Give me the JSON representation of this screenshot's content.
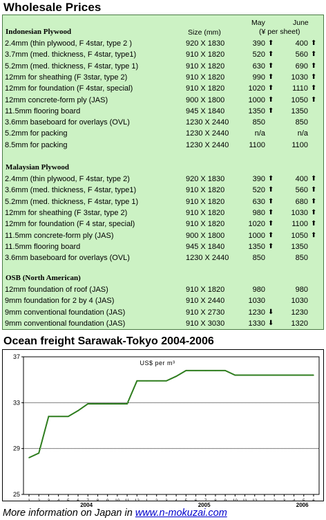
{
  "title": "Wholesale Prices",
  "table": {
    "col_size": "Size (mm)",
    "col_may": "May",
    "col_june": "June",
    "col_unit": "(¥ per sheet)",
    "sections": [
      {
        "name": "Indonesian Plywood",
        "rows": [
          {
            "desc": "2.4mm  (thin plywood, F 4star, type 2 )",
            "size": "920 X 1830",
            "may": "390",
            "may_arrow": "up",
            "june": "400",
            "june_arrow": "up"
          },
          {
            "desc": "3.7mm  (med. thickness,  F 4star, type1)",
            "size": "910 X 1820",
            "may": "520",
            "may_arrow": "up",
            "june": "560",
            "june_arrow": "up"
          },
          {
            "desc": "5.2mm  (med. thickness, F 4star, type 1)",
            "size": "910 X 1820",
            "may": "630",
            "may_arrow": "up",
            "june": "690",
            "june_arrow": "up"
          },
          {
            "desc": "12mm for sheathing (F 3star, type 2)",
            "size": "910 X 1820",
            "may": "990",
            "may_arrow": "up",
            "june": "1030",
            "june_arrow": "up"
          },
          {
            "desc": "12mm for foundation (F 4star, special)",
            "size": "910 X 1820",
            "may": "1020",
            "may_arrow": "up",
            "june": "1110",
            "june_arrow": "up"
          },
          {
            "desc": "12mm concrete-form ply (JAS)",
            "size": "900 X 1800",
            "may": "1000",
            "may_arrow": "up",
            "june": "1050",
            "june_arrow": "up"
          },
          {
            "desc": "11.5mm flooring board",
            "size": "945 X 1840",
            "may": "1350",
            "may_arrow": "up",
            "june": "1350",
            "june_arrow": ""
          },
          {
            "desc": "3.6mm baseboard for overlays (OVL)",
            "size": "1230 X 2440",
            "may": "850",
            "may_arrow": "",
            "june": "850",
            "june_arrow": ""
          },
          {
            "desc": "5.2mm  for packing",
            "size": "1230 X 2440",
            "may": "n/a",
            "may_arrow": "",
            "june": "n/a",
            "june_arrow": ""
          },
          {
            "desc": "8.5mm for packing",
            "size": "1230 X 2440",
            "may": "1100",
            "may_arrow": "",
            "june": "1100",
            "june_arrow": ""
          }
        ]
      },
      {
        "name": "Malaysian Plywood",
        "rows": [
          {
            "desc": "2.4mm  (thin plywood, F 4star, type 2)",
            "size": "920 X 1830",
            "may": "390",
            "may_arrow": "up",
            "june": "400",
            "june_arrow": "up"
          },
          {
            "desc": "3.6mm  (med. thickness, F 4star, type1)",
            "size": "910 X 1820",
            "may": "520",
            "may_arrow": "up",
            "june": "560",
            "june_arrow": "up"
          },
          {
            "desc": "5.2mm  (med. thickness, F 4star, type 1)",
            "size": "910 X 1820",
            "may": "630",
            "may_arrow": "up",
            "june": "680",
            "june_arrow": "up"
          },
          {
            "desc": "12mm  for sheathing (F 3star, type 2)",
            "size": "910 X 1820",
            "may": "980",
            "may_arrow": "up",
            "june": "1030",
            "june_arrow": "up"
          },
          {
            "desc": "12mm for foundation (F 4 star, special)",
            "size": "910 X 1820",
            "may": "1020",
            "may_arrow": "up",
            "june": "1100",
            "june_arrow": "up"
          },
          {
            "desc": "11.5mm concrete-form ply (JAS)",
            "size": "900 X 1800",
            "may": "1000",
            "may_arrow": "up",
            "june": "1050",
            "june_arrow": "up"
          },
          {
            "desc": "11.5mm flooring board",
            "size": "945 X 1840",
            "may": "1350",
            "may_arrow": "up",
            "june": "1350",
            "june_arrow": ""
          },
          {
            "desc": "3.6mm baseboard for overlays (OVL)",
            "size": "1230 X 2440",
            "may": "850",
            "may_arrow": "",
            "june": "850",
            "june_arrow": ""
          }
        ]
      },
      {
        "name": "OSB (North American)",
        "rows": [
          {
            "desc": "12mm foundation of roof (JAS)",
            "size": "910 X 1820",
            "may": "980",
            "may_arrow": "",
            "june": "980",
            "june_arrow": ""
          },
          {
            "desc": "9mm foundation for 2 by 4 (JAS)",
            "size": "910 X 2440",
            "may": "1030",
            "may_arrow": "",
            "june": "1030",
            "june_arrow": ""
          },
          {
            "desc": "9mm conventional foundation (JAS)",
            "size": "910 X 2730",
            "may": "1230",
            "may_arrow": "down",
            "june": "1230",
            "june_arrow": ""
          },
          {
            "desc": "9mm conventional foundation (JAS)",
            "size": "910 X 3030",
            "may": "1330",
            "may_arrow": "down",
            "june": "1320",
            "june_arrow": ""
          }
        ]
      }
    ]
  },
  "chart_title": "Ocean freight Sarawak-Tokyo 2004-2006",
  "chart_data": {
    "type": "line",
    "title": "",
    "unit_label": "US$ per m³",
    "xlabel": "",
    "ylabel": "",
    "ylim": [
      25,
      37
    ],
    "yticks": [
      25,
      29,
      33,
      37
    ],
    "dotted_gridlines": [
      29,
      33
    ],
    "x_tick_labels": [
      "1",
      "2",
      "3",
      "4",
      "5",
      "6",
      "7",
      "8",
      "9",
      "10",
      "11",
      "12",
      "1",
      "2",
      "3",
      "4",
      "5",
      "6",
      "7",
      "8",
      "9",
      "10",
      "11",
      "12",
      "1",
      "2",
      "3",
      "4",
      "5",
      "6"
    ],
    "year_labels": [
      {
        "label": "2004",
        "center_month_index": 6
      },
      {
        "label": "2005",
        "center_month_index": 18
      },
      {
        "label": "2006",
        "center_month_index": 28
      }
    ],
    "series": [
      {
        "color": "#2e7d1e",
        "values": [
          28.2,
          28.6,
          31.8,
          31.8,
          31.8,
          32.3,
          32.9,
          32.9,
          32.9,
          32.9,
          32.9,
          34.9,
          34.9,
          34.9,
          34.9,
          35.3,
          35.8,
          35.8,
          35.8,
          35.8,
          35.8,
          35.4,
          35.4,
          35.4,
          35.4,
          35.4,
          35.4,
          35.4,
          35.4,
          35.4
        ]
      }
    ]
  },
  "footer": {
    "text": "More information on Japan in ",
    "link": "www.n-mokuzai.com"
  }
}
